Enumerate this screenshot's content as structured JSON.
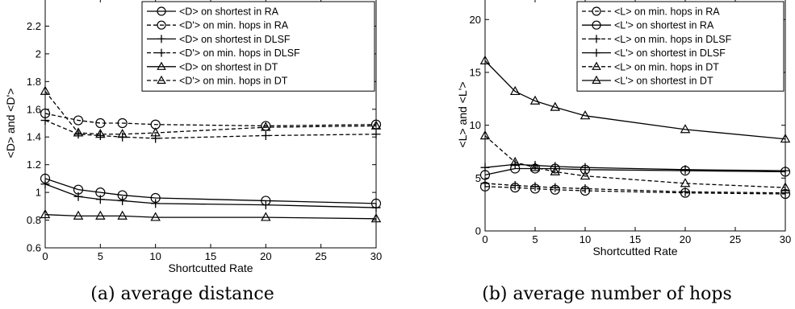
{
  "chart_data": [
    {
      "type": "line",
      "caption": "(a) average distance",
      "xlabel": "Shortcutted Rate",
      "ylabel": "<D> and <D'>",
      "xlim": [
        0,
        30
      ],
      "ylim": [
        0.6,
        2.4
      ],
      "xticks": [
        0,
        5,
        10,
        15,
        20,
        25,
        30
      ],
      "yticks": [
        0.6,
        0.8,
        1,
        1.2,
        1.4,
        1.6,
        1.8,
        2,
        2.2
      ],
      "ytick_labels": [
        "0.6",
        "0.8",
        "1",
        "1.2",
        "1.4",
        "1.6",
        "1.8",
        "2",
        "2.2"
      ],
      "legend_position": "top-right",
      "x": [
        0,
        3,
        5,
        7,
        10,
        20,
        30
      ],
      "series": [
        {
          "name": "<D> on shortest in RA",
          "marker": "circle",
          "dash": "solid",
          "values": [
            1.1,
            1.02,
            1.0,
            0.98,
            0.96,
            0.94,
            0.92
          ]
        },
        {
          "name": "<D'> on min. hops in RA",
          "marker": "circle",
          "dash": "dashed",
          "values": [
            1.57,
            1.52,
            1.5,
            1.5,
            1.49,
            1.48,
            1.49
          ]
        },
        {
          "name": "<D> on shortest in DLSF",
          "marker": "plus",
          "dash": "solid",
          "values": [
            1.06,
            0.97,
            0.95,
            0.94,
            0.92,
            0.91,
            0.89
          ]
        },
        {
          "name": "<D'> on min. hops in DLSF",
          "marker": "plus",
          "dash": "dashed",
          "values": [
            1.52,
            1.42,
            1.41,
            1.4,
            1.39,
            1.41,
            1.42
          ]
        },
        {
          "name": "<D> on shortest in DT",
          "marker": "triangle",
          "dash": "solid",
          "values": [
            0.84,
            0.83,
            0.83,
            0.83,
            0.82,
            0.82,
            0.81
          ]
        },
        {
          "name": "<D'> on min. hops in DT",
          "marker": "triangle",
          "dash": "dashed",
          "values": [
            1.73,
            1.43,
            1.42,
            1.42,
            1.43,
            1.47,
            1.48
          ]
        }
      ]
    },
    {
      "type": "line",
      "caption": "(b) average number of hops",
      "xlabel": "Shortcutted Rate",
      "ylabel": "<L> and <L'>",
      "xlim": [
        0,
        30
      ],
      "ylim": [
        0,
        22
      ],
      "xticks": [
        0,
        5,
        10,
        15,
        20,
        25,
        30
      ],
      "yticks": [
        0,
        5,
        10,
        15,
        20
      ],
      "ytick_labels": [
        "0",
        "5",
        "10",
        "15",
        "20"
      ],
      "legend_position": "top-right",
      "x": [
        0,
        3,
        5,
        7,
        10,
        20,
        30
      ],
      "series": [
        {
          "name": "<L> on min. hops in RA",
          "marker": "circle",
          "dash": "dashed",
          "values": [
            4.2,
            4.1,
            4.0,
            3.9,
            3.8,
            3.6,
            3.5
          ]
        },
        {
          "name": "<L'> on shortest in RA",
          "marker": "circle",
          "dash": "solid",
          "values": [
            5.3,
            5.9,
            5.9,
            5.9,
            5.8,
            5.7,
            5.6
          ]
        },
        {
          "name": "<L> on min. hops in DLSF",
          "marker": "plus",
          "dash": "dashed",
          "values": [
            4.5,
            4.3,
            4.2,
            4.1,
            4.0,
            3.7,
            3.6
          ]
        },
        {
          "name": "<L'> on shortest in DLSF",
          "marker": "plus",
          "dash": "solid",
          "values": [
            6.0,
            6.3,
            6.2,
            6.1,
            6.0,
            5.8,
            5.7
          ]
        },
        {
          "name": "<L> on min. hops in DT",
          "marker": "triangle",
          "dash": "dashed",
          "values": [
            9.0,
            6.5,
            6.0,
            5.6,
            5.2,
            4.5,
            4.1
          ]
        },
        {
          "name": "<L'> on shortest in DT",
          "marker": "triangle",
          "dash": "solid",
          "values": [
            16.1,
            13.2,
            12.3,
            11.7,
            10.9,
            9.6,
            8.7
          ]
        }
      ]
    }
  ]
}
